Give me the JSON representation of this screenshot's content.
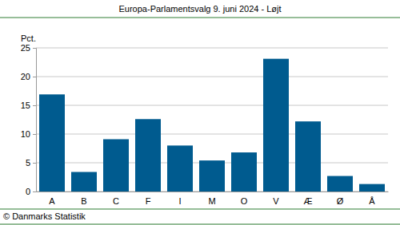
{
  "chart_data": {
    "type": "bar",
    "title": "Europa-Parlamentsvalg 9. juni 2024 - Løjt",
    "ylabel": "Pct.",
    "source": "© Danmarks Statistik",
    "categories": [
      "A",
      "B",
      "C",
      "F",
      "I",
      "M",
      "O",
      "V",
      "Æ",
      "Ø",
      "Å"
    ],
    "values": [
      16.9,
      3.4,
      9.1,
      12.6,
      8.0,
      5.4,
      6.8,
      23.1,
      12.2,
      2.7,
      1.3
    ],
    "color": "#005b8f",
    "ylim": [
      0,
      25
    ],
    "yticks": [
      0,
      5,
      10,
      15,
      20,
      25
    ],
    "grid": true
  }
}
